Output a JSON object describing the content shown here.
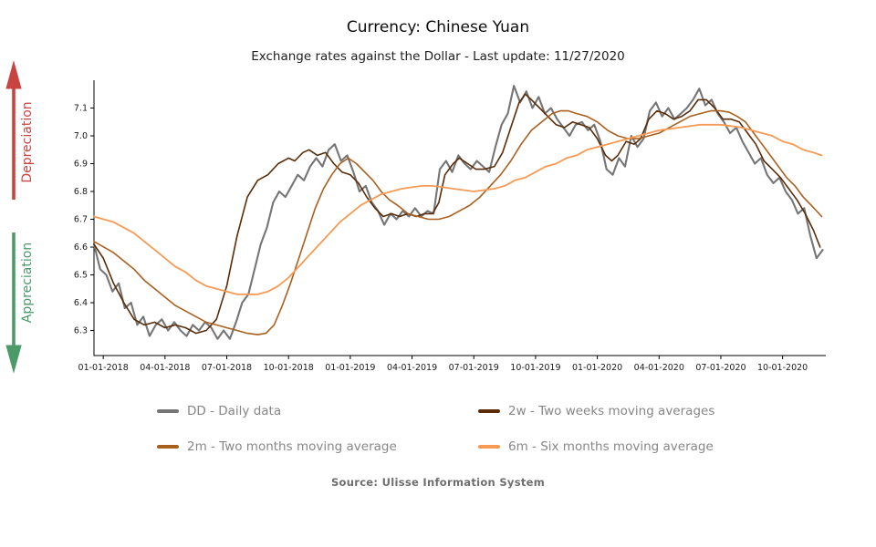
{
  "header": {
    "title": "Currency: Chinese Yuan",
    "subtitle": "Exchange rates against the Dollar - Last update: 11/27/2020"
  },
  "annotations": {
    "depreciation": {
      "label": "Depreciation",
      "color": "#c94341",
      "direction": "up"
    },
    "appreciation": {
      "label": "Appreciation",
      "color": "#4a9b68",
      "direction": "down"
    }
  },
  "chart_data": {
    "type": "line",
    "title": "Currency: Chinese Yuan",
    "xlabel": "",
    "ylabel": "",
    "x_unit": "months since 2018-01-01",
    "x_domain": [
      -0.45,
      35.1
    ],
    "y_domain": [
      6.21,
      7.2
    ],
    "grid": false,
    "legend_position": "bottom",
    "axis_color": "#000000",
    "tick_label_color": "#1a1a1a",
    "y_ticks": [
      {
        "v": 6.3,
        "label": "6.3"
      },
      {
        "v": 6.4,
        "label": "6.4"
      },
      {
        "v": 6.5,
        "label": "6.5"
      },
      {
        "v": 6.6,
        "label": "6.6"
      },
      {
        "v": 6.7,
        "label": "6.7"
      },
      {
        "v": 6.8,
        "label": "6.8"
      },
      {
        "v": 6.9,
        "label": "6.9"
      },
      {
        "v": 7.0,
        "label": "7.0"
      },
      {
        "v": 7.1,
        "label": "7.1"
      }
    ],
    "x_ticks": [
      {
        "t": 0,
        "label": "01-01-2018"
      },
      {
        "t": 3,
        "label": "04-01-2018"
      },
      {
        "t": 6,
        "label": "07-01-2018"
      },
      {
        "t": 9,
        "label": "10-01-2018"
      },
      {
        "t": 12,
        "label": "01-01-2019"
      },
      {
        "t": 15,
        "label": "04-01-2019"
      },
      {
        "t": 18,
        "label": "07-01-2019"
      },
      {
        "t": 21,
        "label": "10-01-2019"
      },
      {
        "t": 24,
        "label": "01-01-2020"
      },
      {
        "t": 27,
        "label": "04-01-2020"
      },
      {
        "t": 30,
        "label": "07-01-2020"
      },
      {
        "t": 33,
        "label": "10-01-2020"
      }
    ],
    "series": [
      {
        "id": "DD",
        "name": "DD - Daily data",
        "color": "#757575",
        "width": 2.1,
        "t_start": -0.45,
        "t_step": 0.3,
        "values": [
          6.61,
          6.52,
          6.5,
          6.44,
          6.47,
          6.38,
          6.4,
          6.32,
          6.35,
          6.28,
          6.32,
          6.34,
          6.3,
          6.33,
          6.3,
          6.28,
          6.32,
          6.3,
          6.33,
          6.31,
          6.27,
          6.3,
          6.27,
          6.33,
          6.4,
          6.43,
          6.52,
          6.61,
          6.67,
          6.76,
          6.8,
          6.78,
          6.82,
          6.86,
          6.84,
          6.89,
          6.92,
          6.89,
          6.95,
          6.97,
          6.91,
          6.93,
          6.87,
          6.8,
          6.82,
          6.76,
          6.73,
          6.68,
          6.72,
          6.7,
          6.73,
          6.71,
          6.74,
          6.71,
          6.73,
          6.72,
          6.88,
          6.91,
          6.87,
          6.93,
          6.9,
          6.88,
          6.91,
          6.89,
          6.87,
          6.96,
          7.04,
          7.08,
          7.18,
          7.12,
          7.16,
          7.1,
          7.14,
          7.08,
          7.1,
          7.06,
          7.03,
          7.0,
          7.04,
          7.05,
          7.02,
          7.04,
          6.98,
          6.88,
          6.86,
          6.92,
          6.89,
          7.0,
          6.96,
          6.99,
          7.09,
          7.12,
          7.07,
          7.1,
          7.06,
          7.08,
          7.1,
          7.13,
          7.17,
          7.11,
          7.13,
          7.08,
          7.05,
          7.01,
          7.03,
          6.98,
          6.94,
          6.9,
          6.92,
          6.86,
          6.83,
          6.85,
          6.8,
          6.77,
          6.72,
          6.74,
          6.64,
          6.56,
          6.59
        ]
      },
      {
        "id": "2w",
        "name": "2w - Two weeks moving averages",
        "color": "#5a2c07",
        "width": 1.6,
        "points": [
          [
            -0.45,
            6.61
          ],
          [
            0,
            6.56
          ],
          [
            0.5,
            6.47
          ],
          [
            1,
            6.4
          ],
          [
            1.5,
            6.34
          ],
          [
            2,
            6.32
          ],
          [
            2.5,
            6.33
          ],
          [
            3,
            6.31
          ],
          [
            3.5,
            6.32
          ],
          [
            4,
            6.31
          ],
          [
            4.5,
            6.29
          ],
          [
            5,
            6.3
          ],
          [
            5.5,
            6.34
          ],
          [
            6,
            6.46
          ],
          [
            6.5,
            6.64
          ],
          [
            7,
            6.78
          ],
          [
            7.5,
            6.84
          ],
          [
            8,
            6.86
          ],
          [
            8.5,
            6.9
          ],
          [
            9,
            6.92
          ],
          [
            9.3,
            6.91
          ],
          [
            9.7,
            6.94
          ],
          [
            10,
            6.95
          ],
          [
            10.4,
            6.93
          ],
          [
            10.8,
            6.94
          ],
          [
            11.2,
            6.9
          ],
          [
            11.6,
            6.87
          ],
          [
            12,
            6.86
          ],
          [
            12.4,
            6.83
          ],
          [
            12.8,
            6.78
          ],
          [
            13.2,
            6.74
          ],
          [
            13.6,
            6.71
          ],
          [
            14,
            6.72
          ],
          [
            14.4,
            6.71
          ],
          [
            14.8,
            6.72
          ],
          [
            15.2,
            6.71
          ],
          [
            15.6,
            6.72
          ],
          [
            16,
            6.72
          ],
          [
            16.3,
            6.76
          ],
          [
            16.6,
            6.86
          ],
          [
            17,
            6.9
          ],
          [
            17.3,
            6.92
          ],
          [
            17.7,
            6.9
          ],
          [
            18.1,
            6.88
          ],
          [
            18.5,
            6.88
          ],
          [
            19,
            6.89
          ],
          [
            19.4,
            6.94
          ],
          [
            19.8,
            7.03
          ],
          [
            20.2,
            7.12
          ],
          [
            20.5,
            7.15
          ],
          [
            20.8,
            7.13
          ],
          [
            21.2,
            7.1
          ],
          [
            21.6,
            7.07
          ],
          [
            22,
            7.04
          ],
          [
            22.4,
            7.03
          ],
          [
            22.8,
            7.05
          ],
          [
            23.2,
            7.04
          ],
          [
            23.6,
            7.03
          ],
          [
            24,
            6.99
          ],
          [
            24.4,
            6.93
          ],
          [
            24.7,
            6.91
          ],
          [
            25,
            6.93
          ],
          [
            25.4,
            6.98
          ],
          [
            25.8,
            6.97
          ],
          [
            26.1,
            6.99
          ],
          [
            26.5,
            7.06
          ],
          [
            26.9,
            7.09
          ],
          [
            27.3,
            7.08
          ],
          [
            27.7,
            7.06
          ],
          [
            28.1,
            7.07
          ],
          [
            28.5,
            7.09
          ],
          [
            28.9,
            7.13
          ],
          [
            29.3,
            7.13
          ],
          [
            29.7,
            7.1
          ],
          [
            30.1,
            7.06
          ],
          [
            30.5,
            7.06
          ],
          [
            30.9,
            7.05
          ],
          [
            31.3,
            7.01
          ],
          [
            31.7,
            6.97
          ],
          [
            32.1,
            6.91
          ],
          [
            32.5,
            6.88
          ],
          [
            32.9,
            6.85
          ],
          [
            33.3,
            6.81
          ],
          [
            33.7,
            6.77
          ],
          [
            34.1,
            6.72
          ],
          [
            34.5,
            6.66
          ],
          [
            34.82,
            6.6
          ]
        ]
      },
      {
        "id": "2m",
        "name": "2m - Two months moving average",
        "color": "#a9601f",
        "width": 1.6,
        "points": [
          [
            -0.45,
            6.62
          ],
          [
            0.5,
            6.58
          ],
          [
            1,
            6.55
          ],
          [
            1.5,
            6.52
          ],
          [
            2,
            6.48
          ],
          [
            2.5,
            6.45
          ],
          [
            3,
            6.42
          ],
          [
            3.5,
            6.39
          ],
          [
            4,
            6.37
          ],
          [
            4.5,
            6.35
          ],
          [
            5,
            6.33
          ],
          [
            5.5,
            6.32
          ],
          [
            6,
            6.31
          ],
          [
            6.5,
            6.3
          ],
          [
            7,
            6.29
          ],
          [
            7.5,
            6.285
          ],
          [
            7.9,
            6.29
          ],
          [
            8.3,
            6.32
          ],
          [
            8.7,
            6.39
          ],
          [
            9.1,
            6.47
          ],
          [
            9.5,
            6.56
          ],
          [
            9.9,
            6.65
          ],
          [
            10.3,
            6.74
          ],
          [
            10.7,
            6.81
          ],
          [
            11.1,
            6.86
          ],
          [
            11.5,
            6.9
          ],
          [
            11.9,
            6.92
          ],
          [
            12.3,
            6.9
          ],
          [
            12.7,
            6.87
          ],
          [
            13.1,
            6.84
          ],
          [
            13.5,
            6.8
          ],
          [
            13.9,
            6.77
          ],
          [
            14.3,
            6.75
          ],
          [
            14.8,
            6.72
          ],
          [
            15.3,
            6.71
          ],
          [
            15.8,
            6.7
          ],
          [
            16.3,
            6.7
          ],
          [
            16.8,
            6.71
          ],
          [
            17.3,
            6.73
          ],
          [
            17.8,
            6.75
          ],
          [
            18.3,
            6.78
          ],
          [
            18.8,
            6.82
          ],
          [
            19.3,
            6.86
          ],
          [
            19.8,
            6.91
          ],
          [
            20.3,
            6.97
          ],
          [
            20.8,
            7.02
          ],
          [
            21.3,
            7.05
          ],
          [
            21.8,
            7.08
          ],
          [
            22.2,
            7.09
          ],
          [
            22.6,
            7.09
          ],
          [
            23,
            7.08
          ],
          [
            23.5,
            7.07
          ],
          [
            24,
            7.05
          ],
          [
            24.5,
            7.02
          ],
          [
            25,
            7.0
          ],
          [
            25.5,
            6.99
          ],
          [
            26,
            6.99
          ],
          [
            26.5,
            7.0
          ],
          [
            27,
            7.01
          ],
          [
            27.5,
            7.03
          ],
          [
            28,
            7.05
          ],
          [
            28.5,
            7.07
          ],
          [
            29,
            7.08
          ],
          [
            29.5,
            7.09
          ],
          [
            30,
            7.09
          ],
          [
            30.4,
            7.085
          ],
          [
            30.8,
            7.07
          ],
          [
            31.2,
            7.05
          ],
          [
            31.6,
            7.01
          ],
          [
            32,
            6.97
          ],
          [
            32.4,
            6.93
          ],
          [
            32.8,
            6.89
          ],
          [
            33.2,
            6.85
          ],
          [
            33.6,
            6.82
          ],
          [
            34,
            6.78
          ],
          [
            34.4,
            6.75
          ],
          [
            34.9,
            6.71
          ]
        ]
      },
      {
        "id": "6m",
        "name": "6m - Six months moving average",
        "color": "#f79a54",
        "width": 1.8,
        "points": [
          [
            -0.45,
            6.71
          ],
          [
            0.5,
            6.69
          ],
          [
            1,
            6.67
          ],
          [
            1.5,
            6.65
          ],
          [
            2,
            6.62
          ],
          [
            2.5,
            6.59
          ],
          [
            3,
            6.56
          ],
          [
            3.5,
            6.53
          ],
          [
            4,
            6.51
          ],
          [
            4.5,
            6.48
          ],
          [
            5,
            6.46
          ],
          [
            5.5,
            6.45
          ],
          [
            6,
            6.44
          ],
          [
            6.5,
            6.43
          ],
          [
            7,
            6.43
          ],
          [
            7.5,
            6.43
          ],
          [
            8,
            6.44
          ],
          [
            8.5,
            6.46
          ],
          [
            9,
            6.49
          ],
          [
            9.5,
            6.53
          ],
          [
            10,
            6.57
          ],
          [
            10.5,
            6.61
          ],
          [
            11,
            6.65
          ],
          [
            11.5,
            6.69
          ],
          [
            12,
            6.72
          ],
          [
            12.5,
            6.75
          ],
          [
            13,
            6.77
          ],
          [
            13.5,
            6.79
          ],
          [
            14,
            6.8
          ],
          [
            14.5,
            6.81
          ],
          [
            15,
            6.815
          ],
          [
            15.5,
            6.82
          ],
          [
            16,
            6.82
          ],
          [
            16.5,
            6.815
          ],
          [
            17,
            6.81
          ],
          [
            17.5,
            6.805
          ],
          [
            18,
            6.8
          ],
          [
            18.5,
            6.805
          ],
          [
            19,
            6.81
          ],
          [
            19.5,
            6.82
          ],
          [
            20,
            6.84
          ],
          [
            20.5,
            6.85
          ],
          [
            21,
            6.87
          ],
          [
            21.5,
            6.89
          ],
          [
            22,
            6.9
          ],
          [
            22.5,
            6.92
          ],
          [
            23,
            6.93
          ],
          [
            23.5,
            6.95
          ],
          [
            24,
            6.96
          ],
          [
            24.5,
            6.97
          ],
          [
            25,
            6.98
          ],
          [
            25.5,
            6.99
          ],
          [
            26,
            7.0
          ],
          [
            26.5,
            7.01
          ],
          [
            27,
            7.02
          ],
          [
            27.5,
            7.025
          ],
          [
            28,
            7.03
          ],
          [
            28.5,
            7.035
          ],
          [
            29,
            7.04
          ],
          [
            29.5,
            7.04
          ],
          [
            30,
            7.04
          ],
          [
            30.5,
            7.035
          ],
          [
            31,
            7.03
          ],
          [
            31.5,
            7.02
          ],
          [
            32,
            7.01
          ],
          [
            32.5,
            7.0
          ],
          [
            33,
            6.98
          ],
          [
            33.5,
            6.97
          ],
          [
            34,
            6.95
          ],
          [
            34.5,
            6.94
          ],
          [
            34.9,
            6.93
          ]
        ]
      }
    ]
  },
  "legend": {
    "items": [
      {
        "id": "DD",
        "label": "DD - Daily data",
        "color": "#757575"
      },
      {
        "id": "2w",
        "label": "2w - Two weeks moving averages",
        "color": "#5a2c07"
      },
      {
        "id": "2m",
        "label": "2m - Two months moving average",
        "color": "#a9601f"
      },
      {
        "id": "6m",
        "label": "6m - Six months moving average",
        "color": "#f79a54"
      }
    ]
  },
  "footer": {
    "source": "Source: Ulisse Information System"
  }
}
